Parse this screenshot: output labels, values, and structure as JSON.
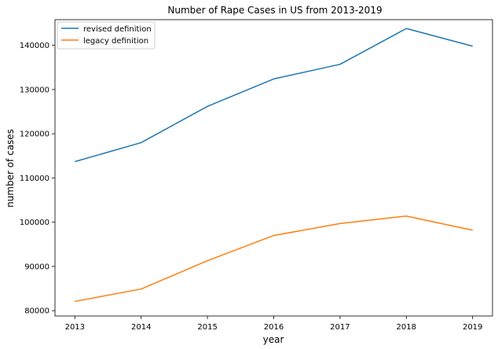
{
  "chart_data": {
    "type": "line",
    "title": "Number of Rape Cases in US from 2013-2019",
    "xlabel": "year",
    "ylabel": "number of cases",
    "x": [
      2013,
      2014,
      2015,
      2016,
      2017,
      2018,
      2019
    ],
    "x_ticks": [
      "2013",
      "2014",
      "2015",
      "2016",
      "2017",
      "2018",
      "2019"
    ],
    "y_ticks": [
      80000,
      90000,
      100000,
      110000,
      120000,
      130000,
      140000
    ],
    "y_tick_labels": [
      "80000",
      "90000",
      "100000",
      "110000",
      "120000",
      "130000",
      "140000"
    ],
    "ylim": [
      78800,
      145800
    ],
    "xlim": [
      2012.7,
      2019.3
    ],
    "grid": false,
    "legend_position": "top-left",
    "series": [
      {
        "name": "revised definition",
        "color": "#1f77b4",
        "values": [
          113700,
          118000,
          126200,
          132400,
          135700,
          143800,
          139800
        ]
      },
      {
        "name": "legacy definition",
        "color": "#ff7f0e",
        "values": [
          82100,
          84900,
          91300,
          97000,
          99700,
          101400,
          98200
        ]
      }
    ]
  }
}
